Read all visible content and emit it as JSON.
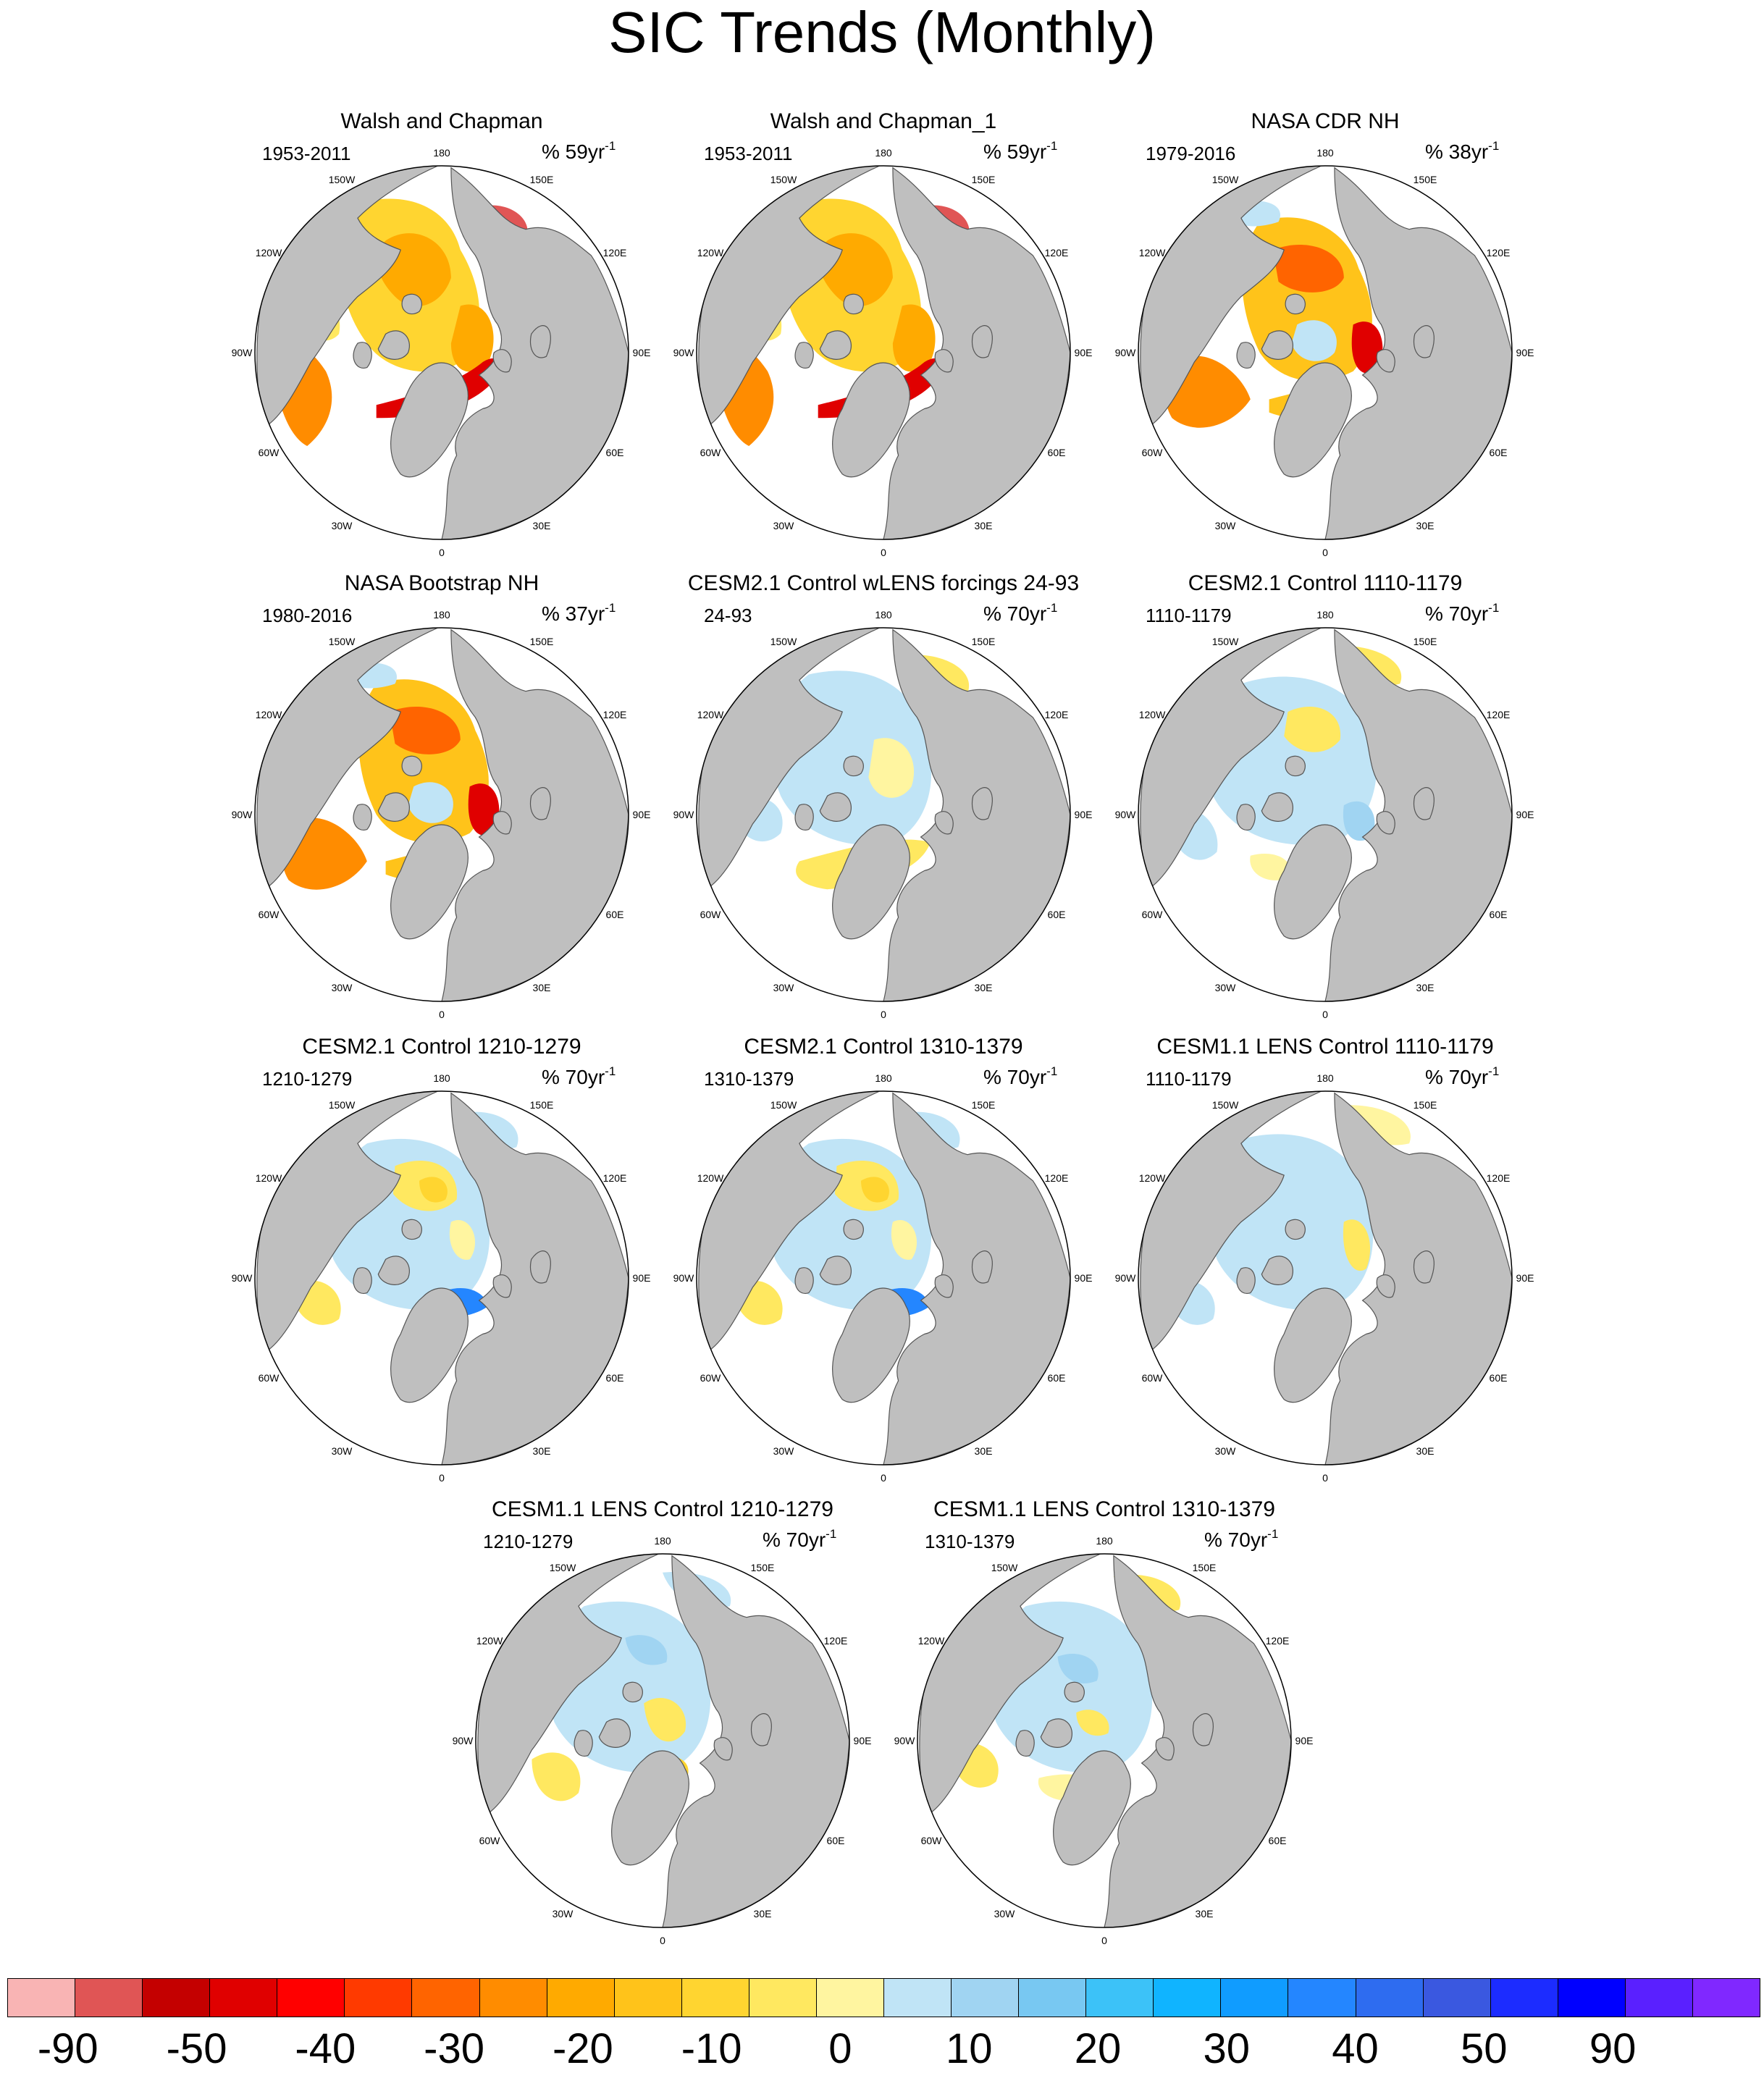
{
  "title": "SIC Trends (Monthly)",
  "panels": [
    {
      "title": "Walsh and Chapman",
      "period": "1953-2011",
      "units": "% 59yr",
      "units_sup": "-1",
      "pattern": "obs_wc"
    },
    {
      "title": "Walsh and Chapman_1",
      "period": "1953-2011",
      "units": "% 59yr",
      "units_sup": "-1",
      "pattern": "obs_wc"
    },
    {
      "title": "NASA CDR NH",
      "period": "1979-2016",
      "units": "% 38yr",
      "units_sup": "-1",
      "pattern": "obs_sat"
    },
    {
      "title": "NASA Bootstrap NH",
      "period": "1980-2016",
      "units": "% 37yr",
      "units_sup": "-1",
      "pattern": "obs_sat"
    },
    {
      "title": "CESM2.1 Control wLENS forcings 24-93",
      "period": "24-93",
      "units": "% 70yr",
      "units_sup": "-1",
      "pattern": "model_a"
    },
    {
      "title": "CESM2.1 Control 1110-1179",
      "period": "1110-1179",
      "units": "% 70yr",
      "units_sup": "-1",
      "pattern": "model_b"
    },
    {
      "title": "CESM2.1 Control 1210-1279",
      "period": "1210-1279",
      "units": "% 70yr",
      "units_sup": "-1",
      "pattern": "model_c"
    },
    {
      "title": "CESM2.1 Control 1310-1379",
      "period": "1310-1379",
      "units": "% 70yr",
      "units_sup": "-1",
      "pattern": "model_c"
    },
    {
      "title": "CESM1.1 LENS Control 1110-1179",
      "period": "1110-1179",
      "units": "% 70yr",
      "units_sup": "-1",
      "pattern": "model_d"
    },
    {
      "title": "CESM1.1 LENS Control 1210-1279",
      "period": "1210-1279",
      "units": "% 70yr",
      "units_sup": "-1",
      "pattern": "model_e"
    },
    {
      "title": "CESM1.1 LENS Control 1310-1379",
      "period": "1310-1379",
      "units": "% 70yr",
      "units_sup": "-1",
      "pattern": "model_f"
    }
  ],
  "longitude_labels": [
    "180",
    "150E",
    "120E",
    "90E",
    "60E",
    "30E",
    "0",
    "30W",
    "60W",
    "90W",
    "120W",
    "150W"
  ],
  "colorbar": {
    "colors": [
      "#f9b4b4",
      "#e05555",
      "#c40000",
      "#e00000",
      "#ff0000",
      "#ff3a00",
      "#ff6400",
      "#ff8c00",
      "#ffaa00",
      "#ffc31a",
      "#ffd530",
      "#ffe860",
      "#fff5a0",
      "#c0e4f6",
      "#a0d4f2",
      "#78c8f2",
      "#3cc2f8",
      "#10b4ff",
      "#109cff",
      "#2486ff",
      "#2e6cf0",
      "#3a58e0",
      "#1c2cff",
      "#0000ff",
      "#5a20ff",
      "#8028ff"
    ],
    "labels": [
      "-90",
      "-50",
      "-40",
      "-30",
      "-20",
      "-10",
      "0",
      "10",
      "20",
      "30",
      "40",
      "50",
      "90"
    ]
  }
}
